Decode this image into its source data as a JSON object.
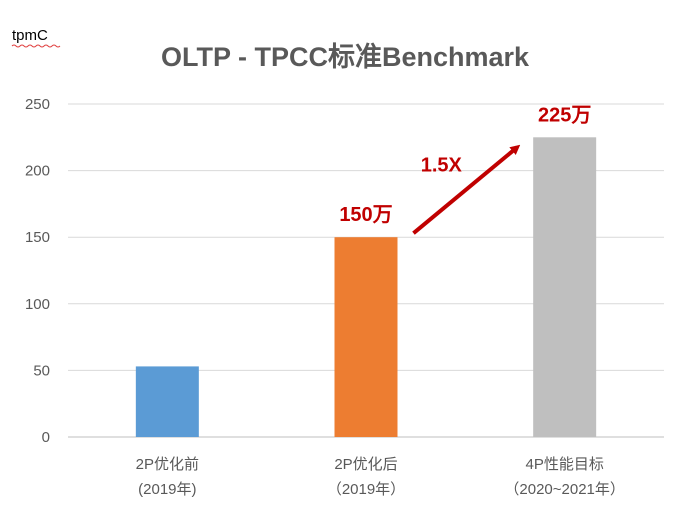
{
  "chart_data": {
    "type": "bar",
    "title": "OLTP - TPCC标准Benchmark",
    "ylabel": "tpmC",
    "xlabel": "",
    "ylim": [
      0,
      250
    ],
    "yticks": [
      0,
      50,
      100,
      150,
      200,
      250
    ],
    "grid": true,
    "legend": "none",
    "categories": [
      [
        "2P优化前",
        "(2019年)"
      ],
      [
        "2P优化后",
        "（2019年）"
      ],
      [
        "4P性能目标",
        "（2020~2021年）"
      ]
    ],
    "values": [
      53,
      150,
      225
    ],
    "bar_colors": [
      "#5b9bd5",
      "#ed7d31",
      "#bfbfbf"
    ],
    "data_labels": [
      "",
      "150万",
      "225万"
    ],
    "annotations": [
      {
        "text": "1.5X",
        "type": "arrow",
        "from_category": 1,
        "to_category": 2,
        "color": "#c00000"
      }
    ]
  }
}
